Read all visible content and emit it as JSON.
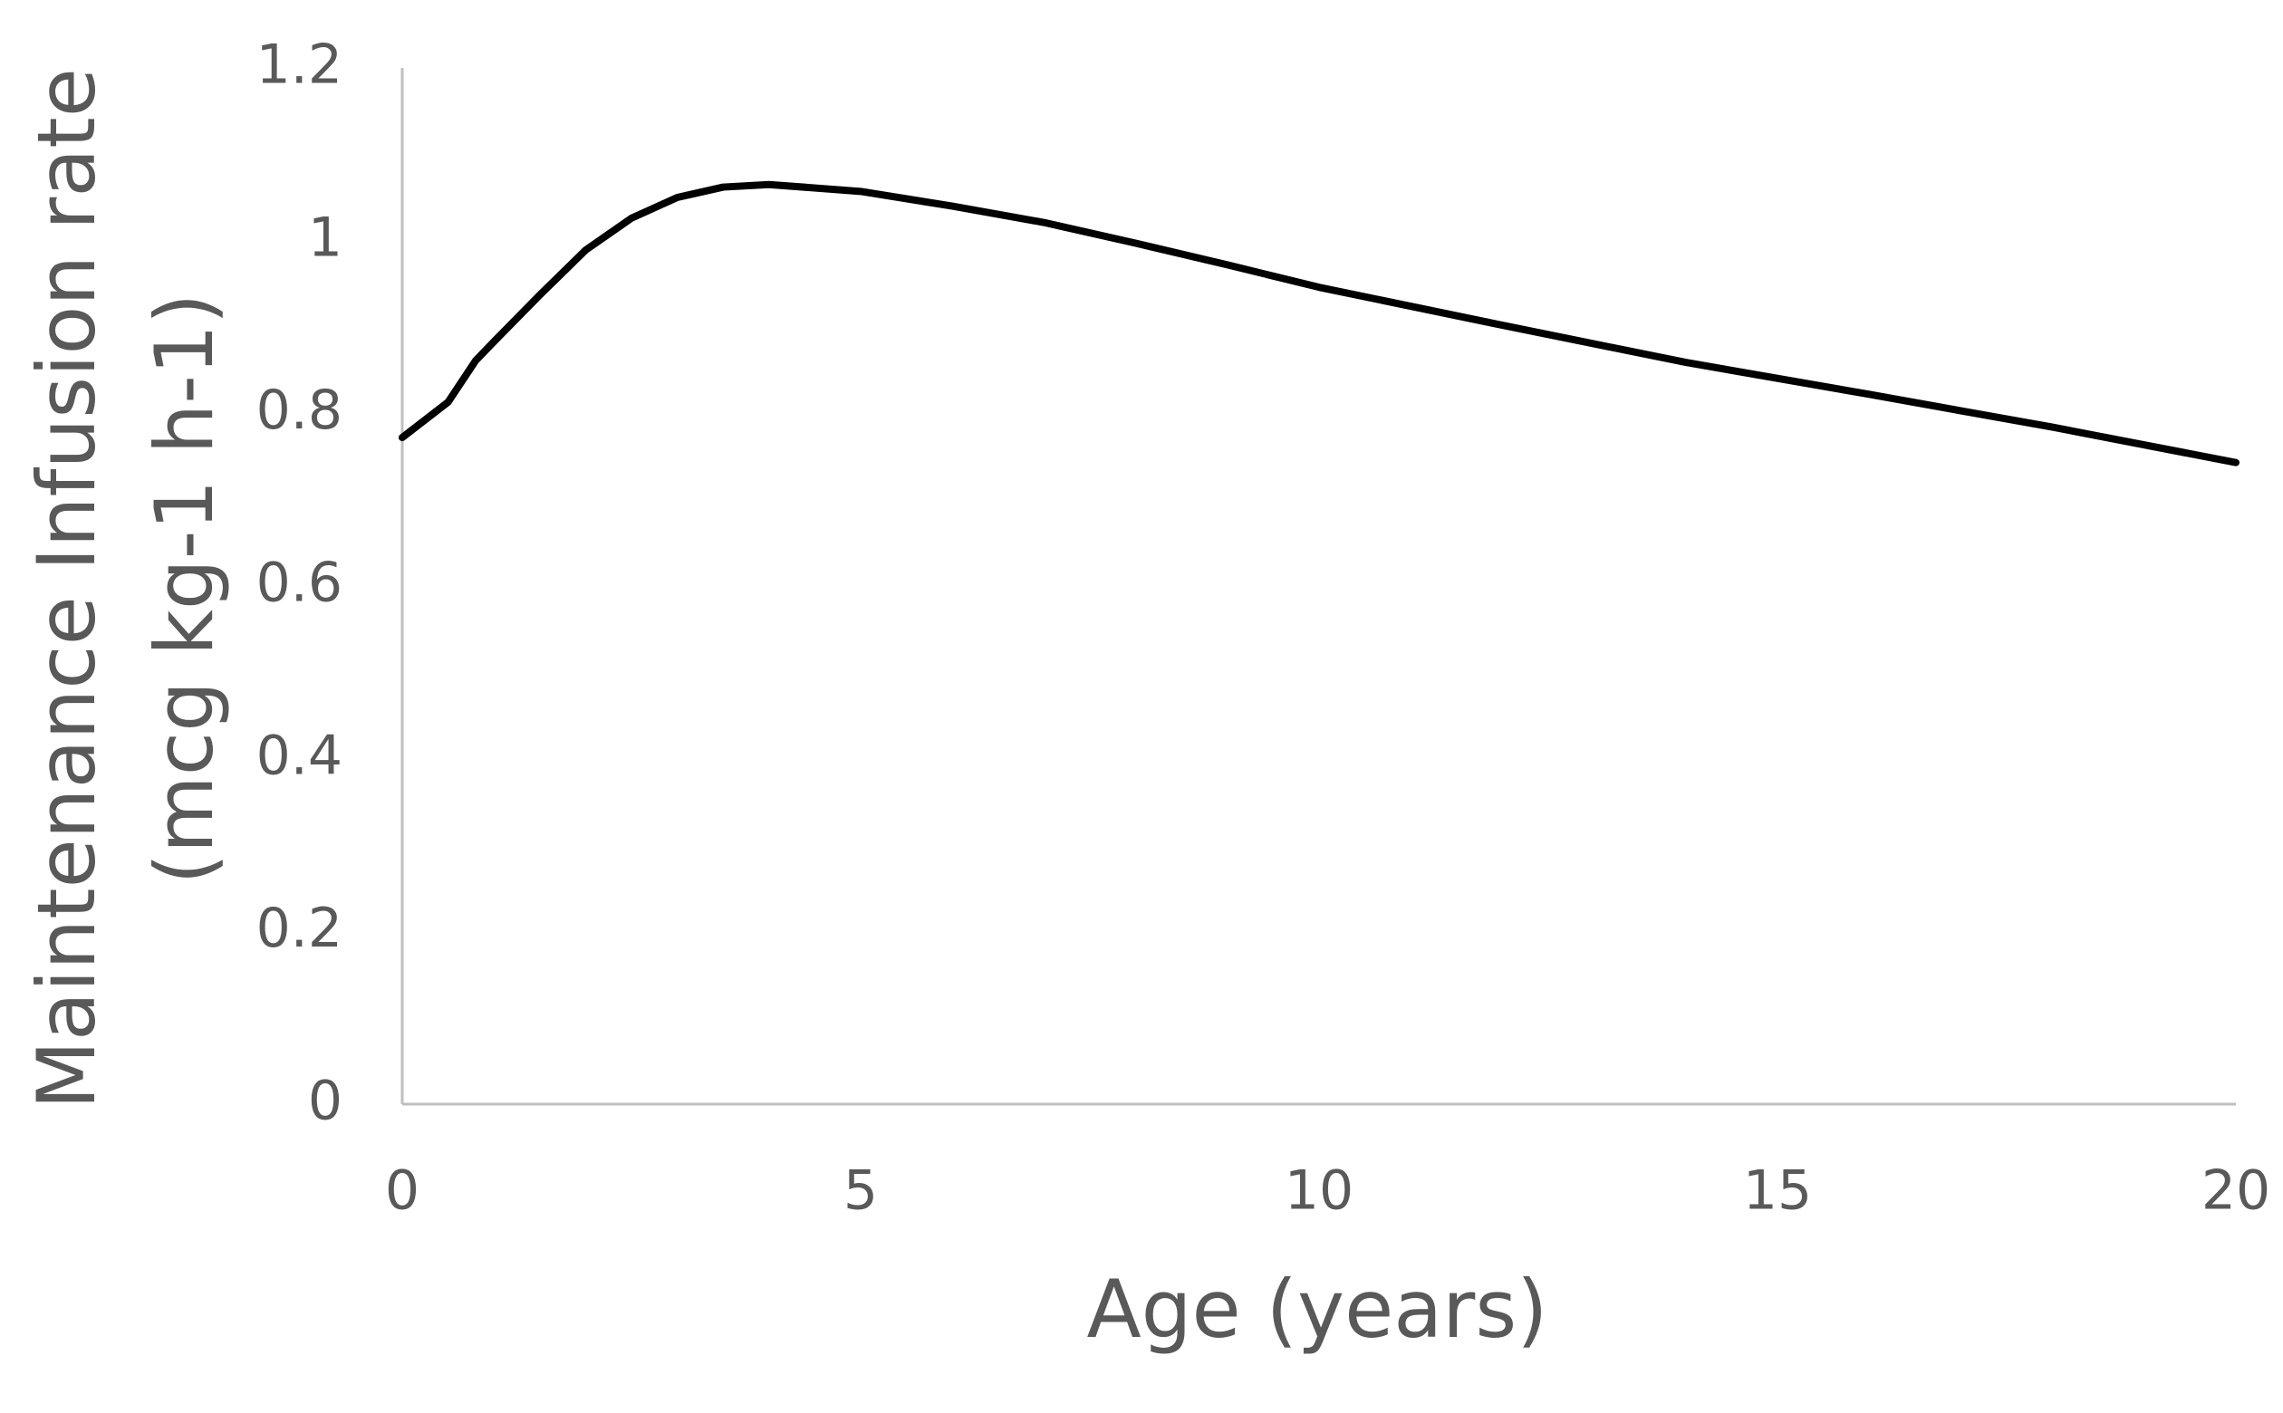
{
  "chart_data": {
    "type": "line",
    "x_label": "Age (years)",
    "y_label": [
      "Maintenance Infusion rate",
      "(mcg kg-1 h-1)"
    ],
    "x": [
      0,
      0.5,
      0.8,
      1,
      1.5,
      2,
      2.5,
      3,
      3.5,
      4,
      5,
      6,
      7,
      8,
      9,
      10,
      12,
      14,
      16,
      18,
      20
    ],
    "series": [
      {
        "color": "#000000",
        "values": [
          0.772,
          0.813,
          0.861,
          0.883,
          0.937,
          0.989,
          1.026,
          1.05,
          1.062,
          1.065,
          1.057,
          1.04,
          1.021,
          0.997,
          0.972,
          0.946,
          0.902,
          0.859,
          0.822,
          0.784,
          0.743
        ]
      }
    ],
    "xlim": [
      0,
      20
    ],
    "xticks": [
      0,
      5,
      10,
      15,
      20
    ],
    "ylim": [
      0,
      1.2
    ],
    "yticks": [
      0,
      0.2,
      0.4,
      0.6,
      0.8,
      1,
      1.2
    ],
    "grid": false
  }
}
